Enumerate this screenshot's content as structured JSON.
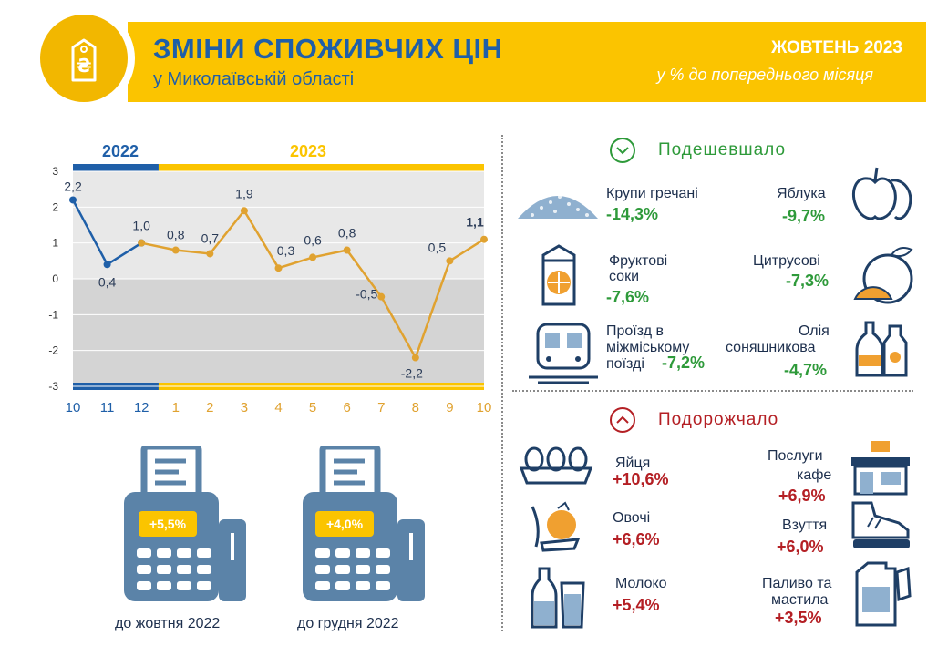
{
  "header": {
    "title": "ЗМІНИ СПОЖИВЧИХ ЦІН",
    "subtitle": "у Миколаївській області",
    "period": "ЖОВТЕНЬ 2023",
    "period_sub": "у % до попереднього місяця",
    "icon": "hryvnia-price-tag-icon"
  },
  "chart_data": {
    "type": "line",
    "year_labels": [
      "2022",
      "2023"
    ],
    "categories": [
      "10",
      "11",
      "12",
      "1",
      "2",
      "3",
      "4",
      "5",
      "6",
      "7",
      "8",
      "9",
      "10"
    ],
    "series": [
      {
        "values": [
          2.2,
          0.4,
          1.0,
          null,
          null,
          null,
          null,
          null,
          null,
          null,
          null,
          null,
          null
        ],
        "color": "#1f5fa8"
      },
      {
        "values": [
          null,
          null,
          1.0,
          0.8,
          0.7,
          1.9,
          0.3,
          0.6,
          0.8,
          -0.5,
          -2.2,
          0.5,
          1.1
        ],
        "color": "#e0a230"
      }
    ],
    "value_labels": [
      "2,2",
      "0,4",
      "1,0",
      "0,8",
      "0,7",
      "1,9",
      "0,3",
      "0,6",
      "0,8",
      "-0,5",
      "-2,2",
      "0,5",
      "1,1"
    ],
    "y_ticks": [
      "3",
      "2",
      "1",
      "0",
      "-1",
      "-2",
      "-3"
    ],
    "ylim": [
      -3,
      3
    ]
  },
  "registers": [
    {
      "value": "+5,5%",
      "caption": "до жовтня 2022"
    },
    {
      "value": "+4,0%",
      "caption": "до грудня 2022"
    }
  ],
  "cheaper": {
    "title": "Подешевшало",
    "items": [
      {
        "name_lines": [
          "Крупи гречані"
        ],
        "value": "-14,3%",
        "icon": "buckwheat-icon"
      },
      {
        "name_lines": [
          "Яблука"
        ],
        "value": "-9,7%",
        "icon": "apple-icon"
      },
      {
        "name_lines": [
          "Фруктові",
          "соки"
        ],
        "value": "-7,6%",
        "icon": "juice-carton-icon"
      },
      {
        "name_lines": [
          "Цитрусові"
        ],
        "value": "-7,3%",
        "icon": "citrus-icon"
      },
      {
        "name_lines": [
          "Проїзд в",
          "міжміському",
          "поїзді"
        ],
        "value": "-7,2%",
        "icon": "train-icon"
      },
      {
        "name_lines": [
          "Олія",
          "соняшникова"
        ],
        "value": "-4,7%",
        "icon": "oil-bottle-icon"
      }
    ]
  },
  "pricier": {
    "title": "Подорожчало",
    "items": [
      {
        "name_lines": [
          "Яйця"
        ],
        "value": "+10,6%",
        "icon": "eggs-icon"
      },
      {
        "name_lines": [
          "Послуги",
          "кафе"
        ],
        "value": "+6,9%",
        "icon": "cafe-icon"
      },
      {
        "name_lines": [
          "Овочі"
        ],
        "value": "+6,6%",
        "icon": "vegetables-icon"
      },
      {
        "name_lines": [
          "Взуття"
        ],
        "value": "+6,0%",
        "icon": "shoes-icon"
      },
      {
        "name_lines": [
          "Молоко"
        ],
        "value": "+5,4%",
        "icon": "milk-icon"
      },
      {
        "name_lines": [
          "Паливо та",
          "мастила"
        ],
        "value": "+3,5%",
        "icon": "fuel-canister-icon"
      }
    ]
  },
  "colors": {
    "brand_yellow": "#fbc400",
    "brand_blue": "#1f5fa8",
    "line_orange": "#e0a230",
    "cheaper_green": "#2e9a3a",
    "pricier_red": "#b41f24",
    "icon_blue": "#5b83a8"
  }
}
